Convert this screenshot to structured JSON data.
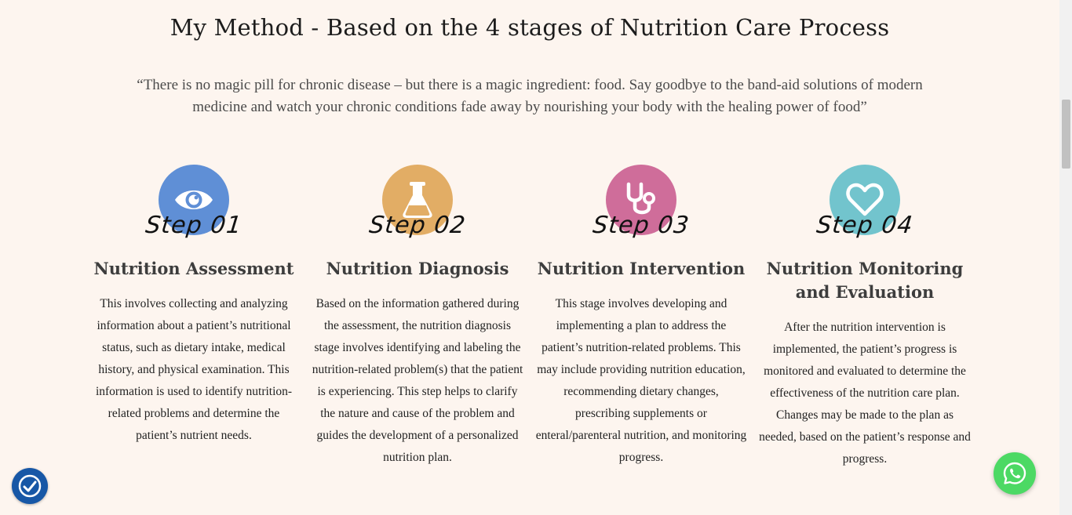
{
  "section": {
    "title": "My Method - Based on the 4 stages of Nutrition Care Process",
    "quote": "“There is no magic pill for chronic disease – but there is a magic ingredient: food. Say goodbye to the band-aid solutions of modern medicine and watch your chronic conditions fade away by nourishing your body with the healing power of food”"
  },
  "steps": [
    {
      "label": "Step 01",
      "icon": "eye-icon",
      "color": "#5f8fd6",
      "heading": "Nutrition Assessment",
      "text": "This involves collecting and analyzing information about a patient’s nutritional status, such as dietary intake, medical history, and physical examination. This information is used to identify nutrition-related problems and determine the patient’s nutrient needs."
    },
    {
      "label": "Step 02",
      "icon": "flask-icon",
      "color": "#e2ad65",
      "heading": "Nutrition Diagnosis",
      "text": "Based on the information gathered during the assessment, the nutrition diagnosis stage involves identifying and labeling the nutrition-related problem(s) that the patient is experiencing. This step helps to clarify the nature and cause of the problem and guides the development of a personalized nutrition plan."
    },
    {
      "label": "Step 03",
      "icon": "stethoscope-icon",
      "color": "#cf6d9a",
      "heading": "Nutrition Intervention",
      "text": "This stage involves developing and implementing a plan to address the patient’s nutrition-related problems. This may include providing nutrition education, recommending dietary changes, prescribing supplements or enteral/parenteral nutrition, and monitoring progress."
    },
    {
      "label": "Step 04",
      "icon": "heart-icon",
      "color": "#72c4cd",
      "heading": "Nutrition Monitoring and Evaluation",
      "text": "After the nutrition intervention is implemented, the patient’s progress is monitored and evaluated to determine the effectiveness of the nutrition care plan. Changes may be made to the plan as needed, based on the patient’s response and progress."
    }
  ],
  "widgets": {
    "accessibility_icon": "accessibility-icon",
    "accessibility_color": "#1757a6",
    "whatsapp_icon": "whatsapp-icon",
    "whatsapp_color": "#4cd964"
  }
}
